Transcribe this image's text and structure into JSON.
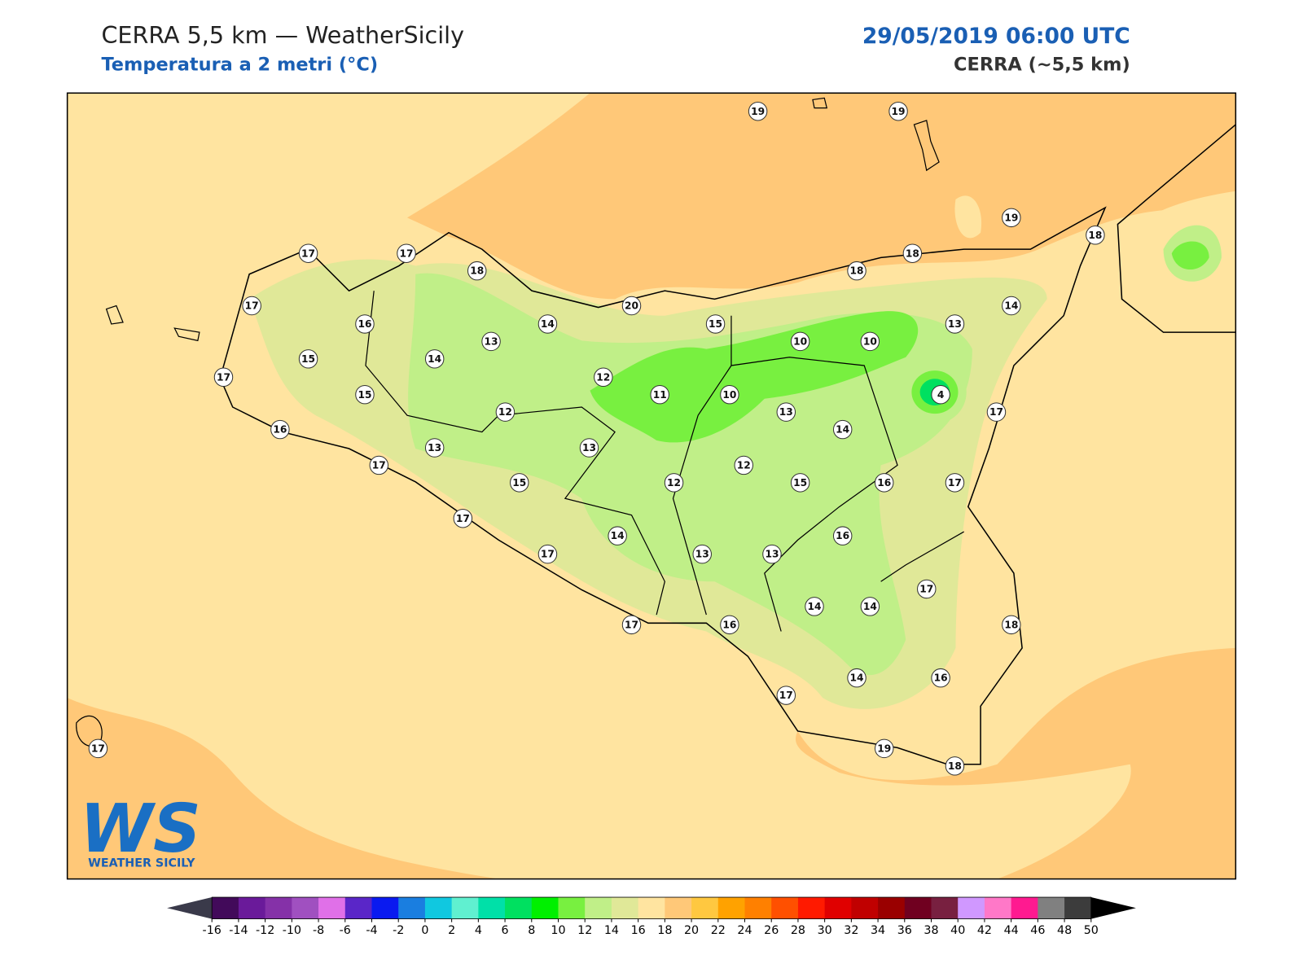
{
  "header": {
    "title": "CERRA 5,5 km — WeatherSicily",
    "subtitle": "Temperatura a 2 metri (°C)",
    "date": "29/05/2019 06:00 UTC",
    "model": "CERRA (~5,5 km)"
  },
  "stations": [
    19,
    19,
    19,
    18,
    17,
    17,
    18,
    18,
    18,
    17,
    16,
    14,
    20,
    15,
    13,
    14,
    15,
    14,
    13,
    10,
    10,
    17,
    15,
    12,
    11,
    10,
    4,
    12,
    13,
    17,
    16,
    13,
    13,
    14,
    12,
    17,
    15,
    12,
    15,
    16,
    17,
    17,
    14,
    16,
    17,
    13,
    13,
    17,
    14,
    14,
    17,
    16,
    18,
    17,
    14,
    16,
    19,
    18,
    17
  ],
  "colorbar": {
    "ticks": [
      -16,
      -14,
      -12,
      -10,
      -8,
      -6,
      -4,
      -2,
      0,
      2,
      4,
      6,
      8,
      10,
      12,
      14,
      16,
      18,
      20,
      22,
      24,
      26,
      28,
      30,
      32,
      34,
      36,
      38,
      40,
      42,
      44,
      46,
      48,
      50
    ],
    "colors": [
      "#420a5a",
      "#6a1a9a",
      "#8531a8",
      "#a050c0",
      "#e070e8",
      "#5a26c8",
      "#0a1af0",
      "#1a7ee0",
      "#10c8e0",
      "#60f0d0",
      "#00e0a8",
      "#00e060",
      "#00f000",
      "#78f040",
      "#c0ef88",
      "#e0e898",
      "#ffe4a0",
      "#ffc878",
      "#ffc840",
      "#ffa200",
      "#ff8000",
      "#ff5000",
      "#ff1a00",
      "#e00000",
      "#c00000",
      "#9a0000",
      "#700020",
      "#782040",
      "#d098ff",
      "#ff78c8",
      "#ff1a90",
      "#808080",
      "#3c3c3c"
    ],
    "under_color": "#3a3a4a",
    "over_color": "#000000"
  },
  "logo": {
    "mark": "WS",
    "name": "WEATHER SICILY"
  }
}
